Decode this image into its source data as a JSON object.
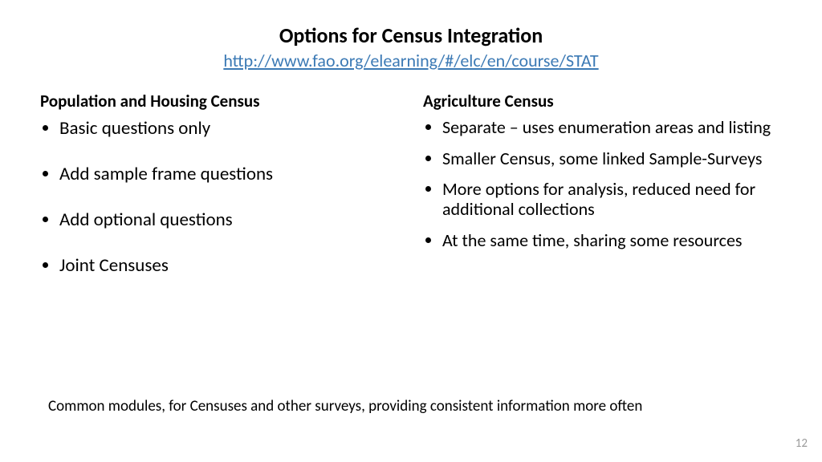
{
  "title": "Options for Census Integration",
  "subtitle_link": "http://www.fao.org/elearning/#/elc/en/course/STAT",
  "left": {
    "heading": "Population and Housing Census",
    "items": [
      "Basic questions only",
      "Add sample frame questions",
      "Add optional questions",
      "Joint Censuses"
    ]
  },
  "right": {
    "heading": "Agriculture Census",
    "items": [
      "Separate – uses enumeration areas and listing",
      "Smaller Census, some linked Sample-Surveys",
      "More options for analysis, reduced need for additional collections",
      "At the same time, sharing some resources"
    ]
  },
  "footer_note": "Common modules, for Censuses and other surveys, providing consistent information more often",
  "page_number": "12",
  "colors": {
    "text": "#000000",
    "link": "#3c7ab5",
    "pagenum": "#9a9a9a",
    "background": "#ffffff"
  }
}
